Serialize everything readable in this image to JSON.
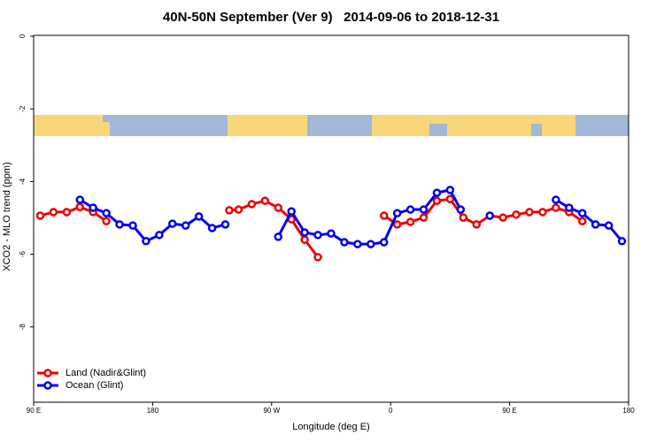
{
  "chart_data": {
    "type": "line",
    "title": "40N-50N September (Ver 9)   2014-09-06 to 2018-12-31",
    "x_label": "Longitude (deg E)",
    "y_label": "XCO2 - MLO trend (ppm)",
    "xlim": [
      90,
      540
    ],
    "ylim": [
      -10,
      0
    ],
    "xticks": [
      {
        "value": 90,
        "label": "90 E"
      },
      180,
      {
        "value": 270,
        "label": "90 W"
      },
      {
        "value": 360,
        "label": "0"
      },
      {
        "value": 450,
        "label": "90 E"
      },
      {
        "value": 540,
        "label": "180"
      }
    ],
    "yticks": [
      0,
      -2,
      -4,
      -6,
      -8
    ],
    "legend": "bottom-left",
    "series": [
      {
        "name": "Land (Nadir&Glint)",
        "color": "#ee0000",
        "x": [
          95,
          105,
          115,
          125,
          135,
          145,
          null,
          238,
          245,
          255,
          265,
          275,
          285,
          295,
          305,
          null,
          355,
          365,
          375,
          385,
          395,
          405,
          415,
          425,
          435,
          445,
          455,
          465,
          475,
          485,
          495,
          505
        ],
        "values": [
          -4.94,
          -4.84,
          -4.84,
          -4.7,
          -4.84,
          -5.09,
          null,
          -4.79,
          -4.77,
          -4.62,
          -4.53,
          -4.72,
          -5.04,
          -5.6,
          -6.08,
          null,
          -4.94,
          -5.18,
          -5.11,
          -4.99,
          -4.53,
          -4.48,
          -4.99,
          -5.18,
          -4.94,
          -4.99,
          -4.91,
          -4.84,
          -4.84,
          -4.72,
          -4.84,
          -5.09
        ]
      },
      {
        "name": "Ocean (Glint)",
        "color": "#0000ee",
        "x": [
          125,
          135,
          145,
          155,
          165,
          175,
          185,
          195,
          205,
          215,
          225,
          235,
          null,
          275,
          285,
          295,
          305,
          315,
          325,
          335,
          345,
          355,
          365,
          375,
          385,
          395,
          405,
          413,
          null,
          435,
          null,
          485,
          495,
          505,
          515,
          525,
          535
        ],
        "values": [
          -4.5,
          -4.72,
          -4.87,
          -5.18,
          -5.21,
          -5.64,
          -5.47,
          -5.16,
          -5.21,
          -4.96,
          -5.28,
          -5.18,
          null,
          -5.52,
          -4.82,
          -5.4,
          -5.47,
          -5.43,
          -5.67,
          -5.72,
          -5.72,
          -5.67,
          -4.87,
          -4.77,
          -4.77,
          -4.31,
          -4.23,
          -4.77,
          null,
          -4.94,
          null,
          -4.5,
          -4.72,
          -4.87,
          -5.18,
          -5.21,
          -5.64
        ]
      }
    ]
  }
}
